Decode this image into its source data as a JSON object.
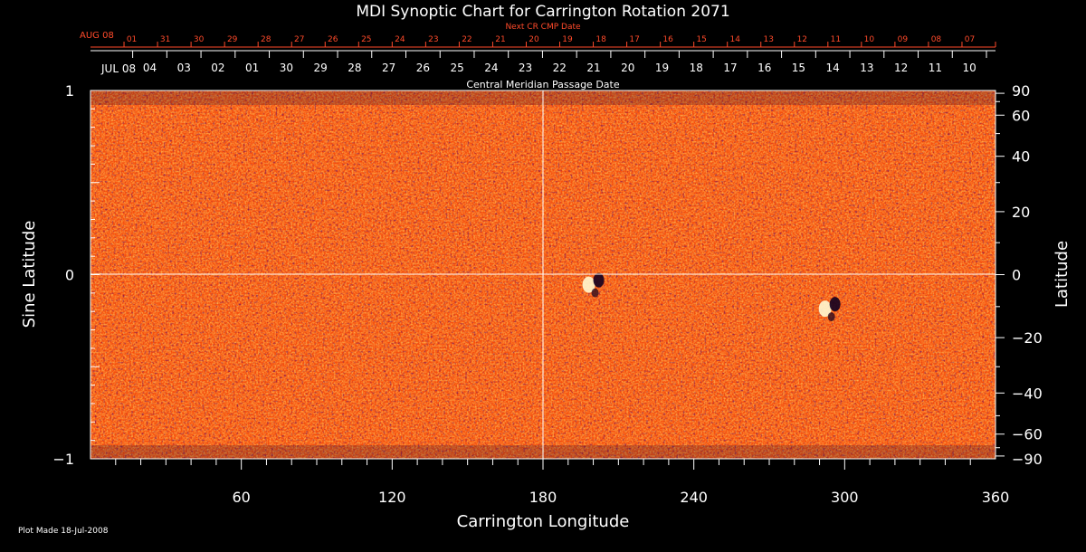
{
  "chart_data": {
    "type": "heatmap",
    "title": "MDI Synoptic Chart for Carrington Rotation 2071",
    "xlabel": "Carrington Longitude",
    "ylabel_left": "Sine Latitude",
    "ylabel_right": "Latitude",
    "xlim": [
      0,
      360
    ],
    "ylim": [
      -1,
      1
    ],
    "x_ticks": [
      60,
      120,
      180,
      240,
      300,
      360
    ],
    "y_ticks_left": [
      {
        "value": 1,
        "label": "1"
      },
      {
        "value": 0,
        "label": "0"
      },
      {
        "value": -1,
        "label": "−1"
      }
    ],
    "y_ticks_right": [
      {
        "deg": 90,
        "label": "90"
      },
      {
        "deg": 60,
        "label": "60"
      },
      {
        "deg": 40,
        "label": "40"
      },
      {
        "deg": 20,
        "label": "20"
      },
      {
        "deg": 0,
        "label": "0"
      },
      {
        "deg": -20,
        "label": "−20"
      },
      {
        "deg": -40,
        "label": "−40"
      },
      {
        "deg": -60,
        "label": "−60"
      },
      {
        "deg": -90,
        "label": "−90"
      }
    ],
    "top_axis_label": "Central Meridian Passage Date",
    "top_axis_month": "JUL 08",
    "top_axis_dates": [
      "04",
      "03",
      "02",
      "01",
      "30",
      "29",
      "28",
      "27",
      "26",
      "25",
      "24",
      "23",
      "22",
      "21",
      "20",
      "19",
      "18",
      "17",
      "16",
      "15",
      "14",
      "13",
      "12",
      "11",
      "10"
    ],
    "next_cr_label": "Next CR CMP Date",
    "next_cr_month": "AUG 08",
    "next_cr_dates": [
      "01",
      "31",
      "30",
      "29",
      "28",
      "27",
      "26",
      "25",
      "24",
      "23",
      "22",
      "21",
      "20",
      "19",
      "18",
      "17",
      "16",
      "15",
      "14",
      "13",
      "12",
      "11",
      "10",
      "09",
      "08",
      "07"
    ],
    "footer_note": "Plot Made 18-Jul-2008",
    "active_regions": [
      {
        "lon": 200,
        "sinlat": -0.04
      },
      {
        "lon": 294,
        "sinlat": -0.17
      }
    ],
    "colors": {
      "background": "#000000",
      "field_base": "#ff5a14",
      "positive": "#ffffc8",
      "negative": "#140028",
      "text": "#ffffff",
      "next_cr": "#ff4a2a"
    }
  }
}
